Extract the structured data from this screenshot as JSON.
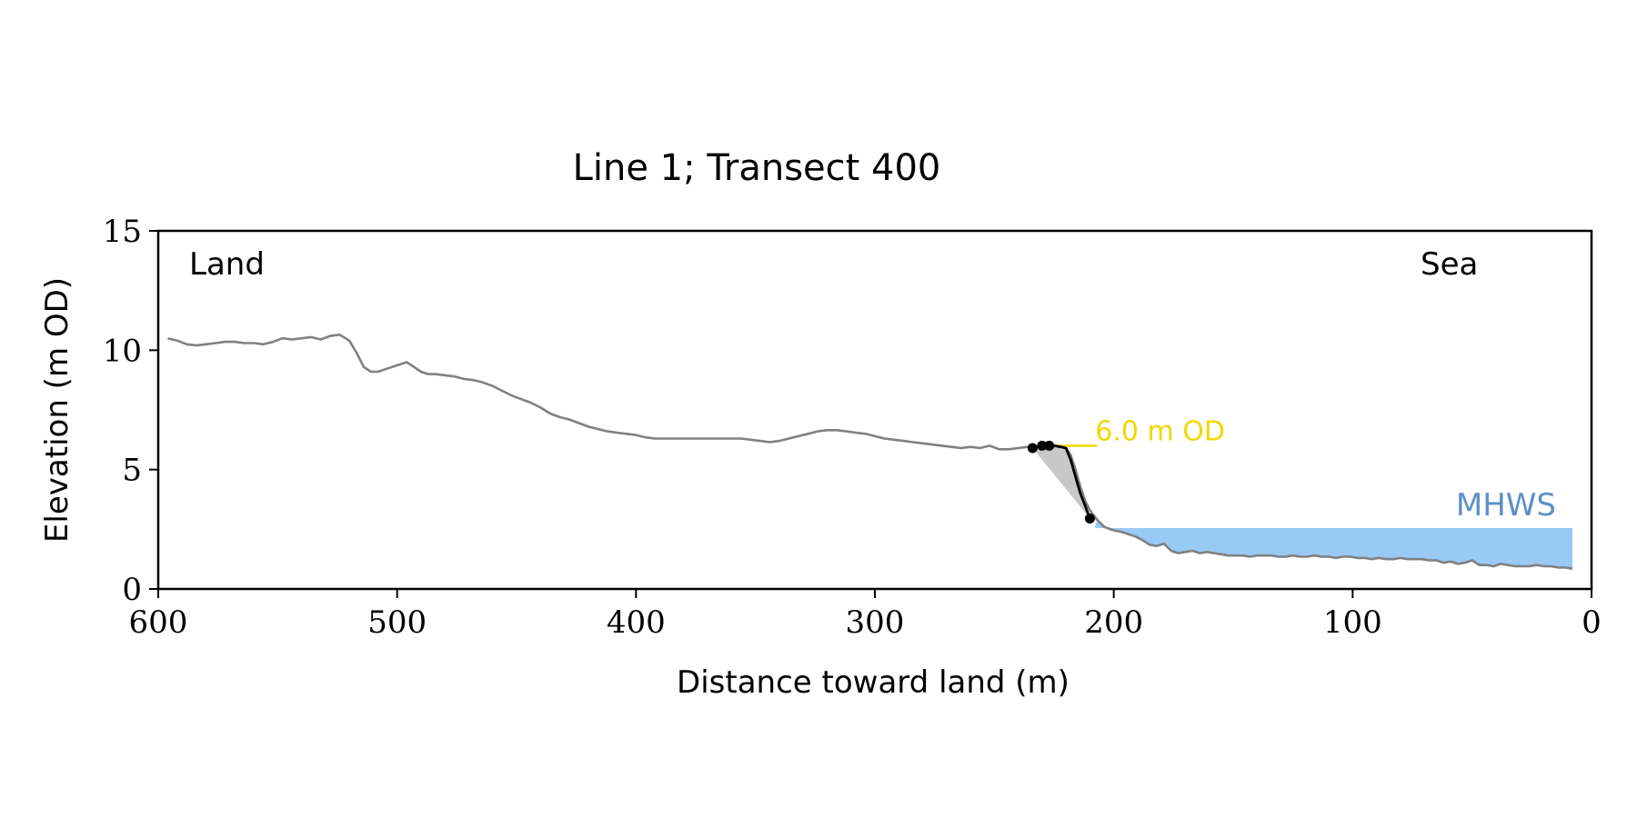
{
  "chart_data": {
    "type": "line",
    "title": "Line 1; Transect 400",
    "xlabel": "Distance toward land (m)",
    "ylabel": "Elevation (m OD)",
    "xlim": [
      600,
      0
    ],
    "ylim": [
      0,
      15
    ],
    "x_ticks": [
      600,
      500,
      400,
      300,
      200,
      100,
      0
    ],
    "y_ticks": [
      0,
      5,
      10,
      15
    ],
    "grid": false,
    "corner_labels": {
      "left": "Land",
      "right": "Sea"
    },
    "profile": {
      "color": "#808080",
      "x": [
        596,
        592,
        588,
        584,
        580,
        576,
        572,
        568,
        564,
        560,
        556,
        552,
        548,
        544,
        540,
        536,
        532,
        528,
        524,
        520,
        517,
        514,
        511,
        508,
        505,
        502,
        499,
        496,
        493,
        490,
        487,
        484,
        480,
        476,
        472,
        468,
        464,
        460,
        456,
        452,
        448,
        444,
        440,
        436,
        432,
        428,
        424,
        420,
        416,
        412,
        408,
        404,
        400,
        396,
        392,
        388,
        384,
        380,
        376,
        372,
        368,
        364,
        360,
        356,
        352,
        348,
        344,
        340,
        336,
        332,
        328,
        324,
        320,
        316,
        312,
        308,
        304,
        300,
        296,
        292,
        288,
        284,
        280,
        276,
        272,
        268,
        264,
        260,
        256,
        252,
        248,
        244,
        240,
        236,
        232,
        229,
        226,
        223,
        220,
        218,
        216,
        214,
        212,
        210,
        207,
        204,
        200,
        197,
        194,
        191,
        188,
        185,
        182,
        179,
        176,
        173,
        170,
        167,
        164,
        161,
        158,
        155,
        152,
        149,
        146,
        143,
        140,
        137,
        134,
        131,
        128,
        125,
        122,
        119,
        116,
        113,
        110,
        107,
        104,
        101,
        98,
        95,
        92,
        89,
        86,
        83,
        80,
        77,
        74,
        71,
        68,
        65,
        62,
        59,
        56,
        53,
        50,
        47,
        44,
        41,
        38,
        35,
        32,
        29,
        26,
        23,
        20,
        17,
        14,
        11,
        8
      ],
      "y": [
        10.5,
        10.4,
        10.25,
        10.2,
        10.25,
        10.3,
        10.35,
        10.35,
        10.3,
        10.3,
        10.25,
        10.35,
        10.5,
        10.45,
        10.5,
        10.55,
        10.45,
        10.6,
        10.65,
        10.4,
        9.9,
        9.3,
        9.1,
        9.1,
        9.2,
        9.3,
        9.4,
        9.5,
        9.3,
        9.1,
        9.0,
        9.0,
        8.95,
        8.9,
        8.8,
        8.75,
        8.65,
        8.5,
        8.3,
        8.1,
        7.95,
        7.8,
        7.6,
        7.35,
        7.2,
        7.1,
        6.95,
        6.8,
        6.7,
        6.6,
        6.55,
        6.5,
        6.45,
        6.35,
        6.3,
        6.3,
        6.3,
        6.3,
        6.3,
        6.3,
        6.3,
        6.3,
        6.3,
        6.3,
        6.25,
        6.2,
        6.15,
        6.2,
        6.3,
        6.4,
        6.5,
        6.6,
        6.65,
        6.65,
        6.6,
        6.55,
        6.5,
        6.4,
        6.3,
        6.25,
        6.2,
        6.15,
        6.1,
        6.05,
        6.0,
        5.95,
        5.9,
        5.95,
        5.9,
        6.0,
        5.85,
        5.85,
        5.9,
        5.95,
        5.95,
        6.0,
        6.05,
        5.95,
        5.9,
        5.6,
        5.0,
        4.3,
        3.7,
        3.3,
        2.9,
        2.6,
        2.45,
        2.4,
        2.3,
        2.2,
        2.05,
        1.85,
        1.8,
        1.9,
        1.6,
        1.5,
        1.55,
        1.6,
        1.5,
        1.55,
        1.5,
        1.45,
        1.4,
        1.4,
        1.4,
        1.35,
        1.4,
        1.4,
        1.4,
        1.35,
        1.35,
        1.4,
        1.35,
        1.35,
        1.4,
        1.35,
        1.35,
        1.3,
        1.35,
        1.35,
        1.3,
        1.3,
        1.25,
        1.3,
        1.25,
        1.25,
        1.3,
        1.25,
        1.25,
        1.25,
        1.2,
        1.2,
        1.1,
        1.15,
        1.05,
        1.1,
        1.2,
        1.0,
        1.0,
        0.95,
        1.05,
        1.0,
        0.95,
        0.95,
        0.95,
        1.0,
        0.95,
        0.95,
        0.9,
        0.9,
        0.85
      ]
    },
    "cliff_line": {
      "color": "#000000",
      "x": [
        234,
        231,
        228,
        225,
        222,
        220,
        218,
        216,
        214,
        212,
        210
      ],
      "y": [
        5.9,
        5.95,
        6.0,
        6.0,
        5.95,
        5.9,
        5.4,
        4.7,
        4.0,
        3.5,
        2.95
      ]
    },
    "markers": [
      {
        "x": 234,
        "y": 5.9
      },
      {
        "x": 230,
        "y": 6.0
      },
      {
        "x": 227,
        "y": 6.0
      },
      {
        "x": 210,
        "y": 2.95
      }
    ],
    "shaded_area": {
      "color": "#c8c8c8",
      "x": [
        234,
        210
      ],
      "y": [
        5.9,
        2.95
      ]
    },
    "od_level": {
      "label": "6.0 m OD",
      "value": 6.0,
      "x_from": 227,
      "x_to": 207,
      "color": "#f0d800"
    },
    "mhws": {
      "label": "MHWS",
      "value": 2.55,
      "x_from": 208,
      "x_to": 8,
      "color": "#99c9f5",
      "label_color": "#5b8fc9"
    }
  }
}
